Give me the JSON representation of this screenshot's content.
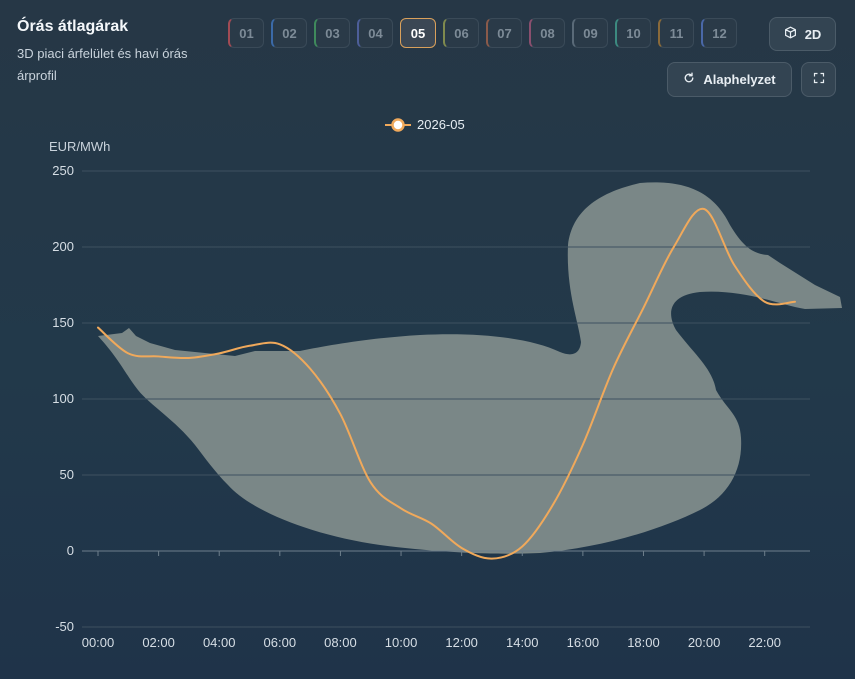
{
  "header": {
    "title": "Órás átlagárak",
    "subtitle": "3D piaci árfelület és havi órás árprofil"
  },
  "months": [
    "01",
    "02",
    "03",
    "04",
    "05",
    "06",
    "07",
    "08",
    "09",
    "10",
    "11",
    "12"
  ],
  "selected_month": "05",
  "month_colors": [
    "#a24b54",
    "#3b6aa8",
    "#3f8a5c",
    "#4d5e99",
    "#d9a05b",
    "#7f8a4e",
    "#8a5a4a",
    "#8a4f6e",
    "#5a6a78",
    "#3c8a80",
    "#8a6a3a",
    "#4a68a8"
  ],
  "controls": {
    "view_label": "2D",
    "reset_label": "Alaphelyzet"
  },
  "icons": {
    "view": "cube-icon",
    "reset": "refresh-icon",
    "fullscreen": "fullscreen-icon",
    "background": "duck-silhouette"
  },
  "colors": {
    "line": "#f0a95b",
    "background": "#263746",
    "duck": "#7a8787"
  },
  "chart_data": {
    "type": "line",
    "ylabel": "EUR/MWh",
    "ylim": [
      -50,
      250
    ],
    "yticks": [
      -50,
      0,
      50,
      100,
      150,
      200,
      250
    ],
    "xticks": [
      "00:00",
      "02:00",
      "04:00",
      "06:00",
      "08:00",
      "10:00",
      "12:00",
      "14:00",
      "16:00",
      "18:00",
      "20:00",
      "22:00"
    ],
    "legend_position": "top-center",
    "grid": true,
    "series": [
      {
        "name": "2026-05",
        "x": [
          "00:00",
          "01:00",
          "02:00",
          "03:00",
          "04:00",
          "05:00",
          "06:00",
          "07:00",
          "08:00",
          "09:00",
          "10:00",
          "11:00",
          "12:00",
          "13:00",
          "14:00",
          "15:00",
          "16:00",
          "17:00",
          "18:00",
          "19:00",
          "20:00",
          "21:00",
          "22:00",
          "23:00"
        ],
        "values": [
          147,
          130,
          128,
          127,
          130,
          135,
          136,
          120,
          90,
          45,
          28,
          18,
          2,
          -5,
          3,
          30,
          70,
          120,
          160,
          200,
          225,
          188,
          164,
          164
        ]
      }
    ]
  }
}
